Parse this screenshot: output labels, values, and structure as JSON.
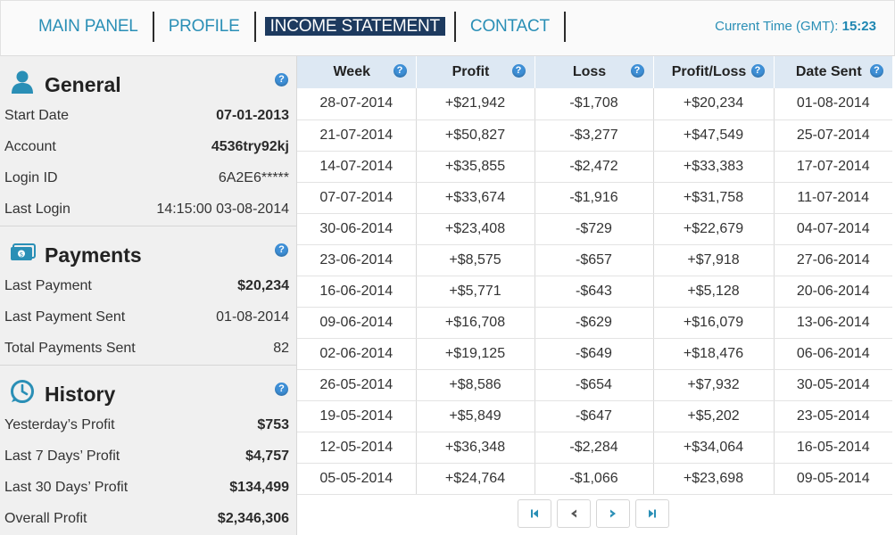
{
  "nav": {
    "items": [
      "MAIN PANEL",
      "PROFILE",
      "INCOME STATEMENT",
      "CONTACT"
    ],
    "active_index": 2,
    "clock_label": "Current Time (GMT):",
    "clock_value": "15:23"
  },
  "general": {
    "title": "General",
    "rows": [
      {
        "label": "Start Date",
        "value": "07-01-2013"
      },
      {
        "label": "Account",
        "value": "4536try92kj"
      },
      {
        "label": "Login ID",
        "value": "6A2E6*****"
      },
      {
        "label": "Last Login",
        "value": "14:15:00 03-08-2014"
      }
    ]
  },
  "payments": {
    "title": "Payments",
    "rows": [
      {
        "label": "Last Payment",
        "value": "$20,234"
      },
      {
        "label": "Last Payment Sent",
        "value": "01-08-2014"
      },
      {
        "label": "Total Payments Sent",
        "value": "82"
      }
    ]
  },
  "history": {
    "title": "History",
    "rows": [
      {
        "label": "Yesterday’s Profit",
        "value": "$753"
      },
      {
        "label": "Last 7 Days’ Profit",
        "value": "$4,757"
      },
      {
        "label": "Last 30 Days’ Profit",
        "value": "$134,499"
      },
      {
        "label": "Overall Profit",
        "value": "$2,346,306"
      }
    ]
  },
  "help_glyph": "?",
  "table": {
    "headers": [
      "Week",
      "Profit",
      "Loss",
      "Profit/Loss",
      "Date Sent"
    ],
    "rows": [
      [
        "28-07-2014",
        "+$21,942",
        "-$1,708",
        "+$20,234",
        "01-08-2014"
      ],
      [
        "21-07-2014",
        "+$50,827",
        "-$3,277",
        "+$47,549",
        "25-07-2014"
      ],
      [
        "14-07-2014",
        "+$35,855",
        "-$2,472",
        "+$33,383",
        "17-07-2014"
      ],
      [
        "07-07-2014",
        "+$33,674",
        "-$1,916",
        "+$31,758",
        "11-07-2014"
      ],
      [
        "30-06-2014",
        "+$23,408",
        "-$729",
        "+$22,679",
        "04-07-2014"
      ],
      [
        "23-06-2014",
        "+$8,575",
        "-$657",
        "+$7,918",
        "27-06-2014"
      ],
      [
        "16-06-2014",
        "+$5,771",
        "-$643",
        "+$5,128",
        "20-06-2014"
      ],
      [
        "09-06-2014",
        "+$16,708",
        "-$629",
        "+$16,079",
        "13-06-2014"
      ],
      [
        "02-06-2014",
        "+$19,125",
        "-$649",
        "+$18,476",
        "06-06-2014"
      ],
      [
        "26-05-2014",
        "+$8,586",
        "-$654",
        "+$7,932",
        "30-05-2014"
      ],
      [
        "19-05-2014",
        "+$5,849",
        "-$647",
        "+$5,202",
        "23-05-2014"
      ],
      [
        "12-05-2014",
        "+$36,348",
        "-$2,284",
        "+$34,064",
        "16-05-2014"
      ],
      [
        "05-05-2014",
        "+$24,764",
        "-$1,066",
        "+$23,698",
        "09-05-2014"
      ]
    ]
  },
  "pager": [
    "first-page-icon",
    "prev-page-icon",
    "next-page-icon",
    "last-page-icon"
  ],
  "colors": {
    "accent": "#2a8fb6",
    "active_nav": "#1d3a5f",
    "header_bg": "#dde8f3",
    "help": "#3e8fd6"
  }
}
